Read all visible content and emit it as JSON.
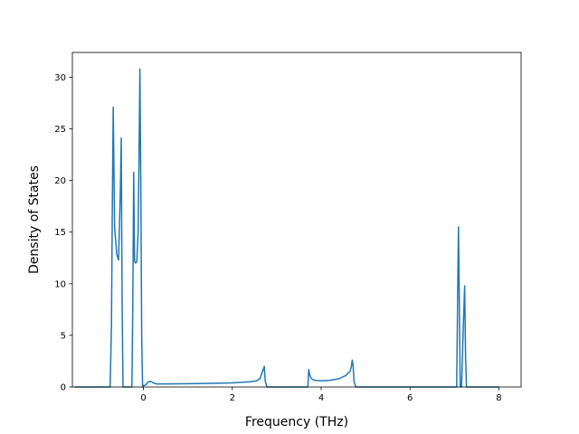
{
  "chart_data": {
    "type": "line",
    "title": "",
    "xlabel": "Frequency (THz)",
    "ylabel": "Density of States",
    "xlim": [
      -1.6,
      8.5
    ],
    "ylim": [
      0,
      32.4
    ],
    "x_ticks": [
      0,
      2,
      4,
      6,
      8
    ],
    "y_ticks": [
      0,
      5,
      10,
      15,
      20,
      25,
      30
    ],
    "x_tick_labels": [
      "0",
      "2",
      "4",
      "6",
      "8"
    ],
    "y_tick_labels": [
      "0",
      "5",
      "10",
      "15",
      "20",
      "25",
      "30"
    ],
    "grid": false,
    "line_color": "#1f77b4",
    "series": [
      {
        "x": [
          -1.55,
          -0.8,
          -0.75,
          -0.72,
          -0.7,
          -0.68,
          -0.65,
          -0.6,
          -0.56,
          -0.52,
          -0.5,
          -0.48,
          -0.46,
          -0.44,
          -0.4,
          -0.35,
          -0.3,
          -0.26,
          -0.24,
          -0.22,
          -0.2,
          -0.18,
          -0.15,
          -0.12,
          -0.1,
          -0.08,
          -0.06,
          -0.04,
          -0.02,
          0.0,
          0.03,
          0.06,
          0.1,
          0.15,
          0.2,
          0.25,
          0.3,
          0.4,
          0.5,
          1.0,
          1.5,
          2.0,
          2.4,
          2.55,
          2.62,
          2.68,
          2.72,
          2.74,
          2.78,
          3.0,
          3.5,
          3.7,
          3.72,
          3.74,
          3.78,
          3.85,
          4.0,
          4.2,
          4.4,
          4.55,
          4.65,
          4.68,
          4.7,
          4.72,
          4.74,
          4.78,
          5.0,
          6.0,
          7.0,
          7.05,
          7.07,
          7.09,
          7.11,
          7.13,
          7.16,
          7.2,
          7.23,
          7.25,
          7.27,
          7.3,
          7.4,
          8.0
        ],
        "y": [
          0,
          0,
          0,
          6,
          18,
          27.1,
          15.5,
          12.8,
          12.3,
          19,
          24.1,
          8,
          0,
          0,
          0,
          0,
          0,
          0,
          8,
          20.8,
          12.2,
          12,
          12.1,
          15,
          22,
          30.8,
          20,
          5,
          0,
          0.15,
          0.15,
          0.25,
          0.45,
          0.55,
          0.45,
          0.35,
          0.3,
          0.3,
          0.3,
          0.32,
          0.35,
          0.4,
          0.5,
          0.6,
          0.8,
          1.5,
          2.0,
          0.6,
          0,
          0,
          0,
          0,
          1.7,
          1.2,
          0.8,
          0.65,
          0.6,
          0.65,
          0.8,
          1.1,
          1.5,
          2.0,
          2.6,
          2.0,
          0.5,
          0,
          0,
          0,
          0,
          0,
          8,
          15.5,
          8,
          0,
          0,
          6,
          9.8,
          3,
          0,
          0,
          0,
          0
        ]
      }
    ]
  }
}
